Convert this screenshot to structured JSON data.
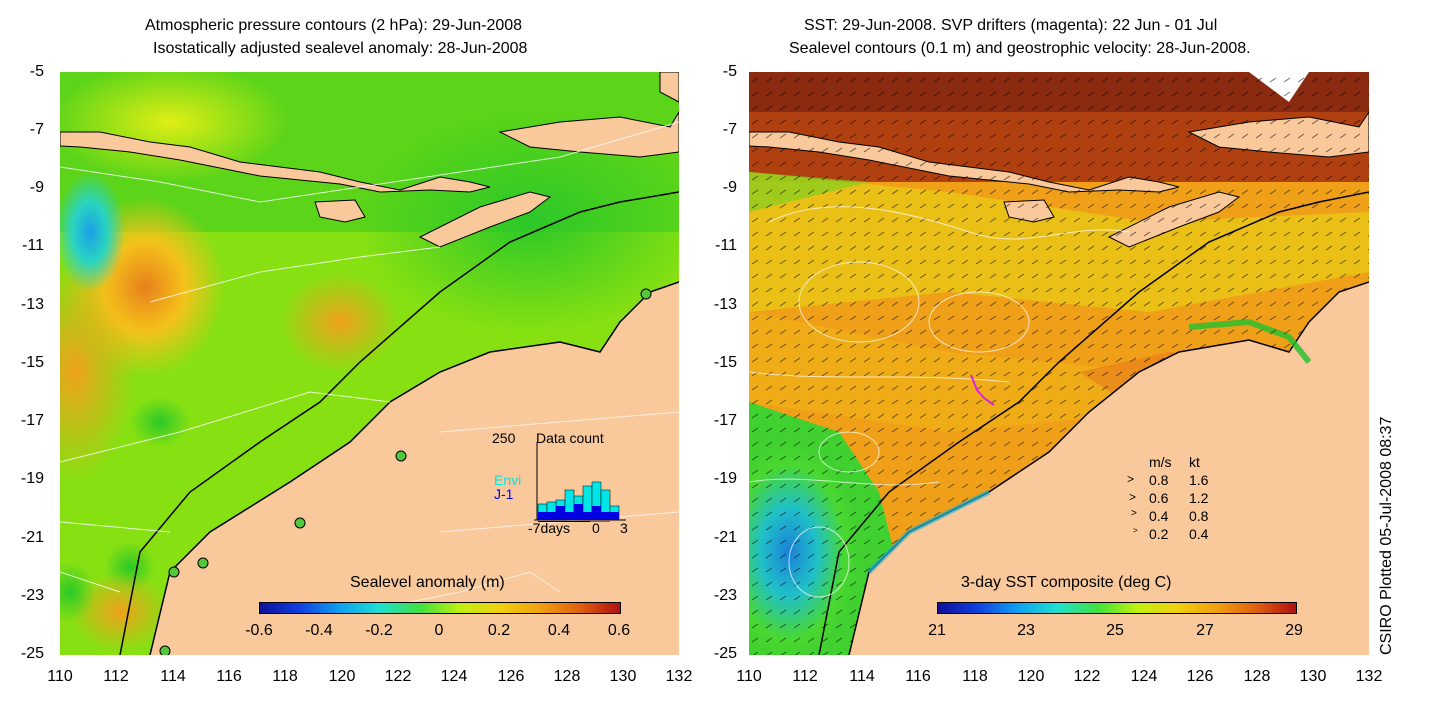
{
  "left_panel": {
    "title_line1": "Atmospheric pressure contours (2 hPa): 29-Jun-2008",
    "title_line2": "Isostatically adjusted sealevel anomaly: 28-Jun-2008",
    "colorbar_title": "Sealevel anomaly (m)",
    "colorbar_ticks": [
      "-0.6",
      "-0.4",
      "-0.2",
      "0",
      "0.2",
      "0.4",
      "0.6"
    ],
    "inset": {
      "ymax_label": "250",
      "title": "Data count",
      "series": [
        "Envi",
        "J-1"
      ],
      "series_colors": [
        "#00e5e5",
        "#0000e0"
      ],
      "x_labels": [
        "-7days",
        "0",
        "3"
      ]
    }
  },
  "right_panel": {
    "title_line1": "SST: 29-Jun-2008. SVP drifters (magenta): 22 Jun - 01 Jul",
    "title_line2": "Sealevel contours (0.1 m) and geostrophic velocity: 28-Jun-2008.",
    "colorbar_title": "3-day SST composite (deg C)",
    "colorbar_ticks": [
      "21",
      "23",
      "25",
      "27",
      "29"
    ],
    "velocity_key": {
      "header_ms": "m/s",
      "header_kt": "kt",
      "rows": [
        {
          "ms": "0.8",
          "kt": "1.6"
        },
        {
          "ms": "0.6",
          "kt": "1.2"
        },
        {
          "ms": "0.4",
          "kt": "0.8"
        },
        {
          "ms": "0.2",
          "kt": "0.4"
        }
      ]
    }
  },
  "y_ticks": [
    "-5",
    "-7",
    "-9",
    "-11",
    "-13",
    "-15",
    "-17",
    "-19",
    "-21",
    "-23",
    "-25"
  ],
  "x_ticks": [
    "110",
    "112",
    "114",
    "116",
    "118",
    "120",
    "122",
    "124",
    "126",
    "128",
    "130",
    "132"
  ],
  "credit": "CSIRO Plotted 05-Jul-2008 08:37",
  "colors": {
    "land": "#f9c89b",
    "sla_high": "#e2801c",
    "sla_mid": "#2fd018",
    "sst_warm": "#e87a1a",
    "sst_cool": "#1ec8c0"
  }
}
